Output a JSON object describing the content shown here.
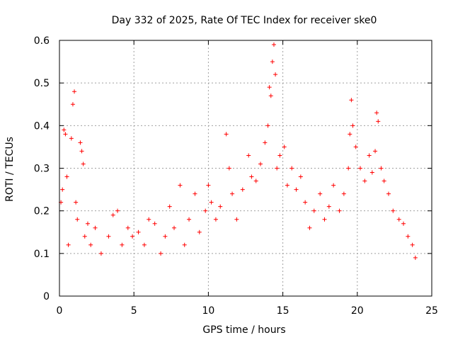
{
  "chart_data": {
    "type": "scatter",
    "title": "Day 332 of 2025, Rate Of TEC Index for receiver ske0",
    "xlabel": "GPS time / hours",
    "ylabel": "ROTI / TECUs",
    "xlim": [
      0,
      25
    ],
    "ylim": [
      0,
      0.6
    ],
    "x_ticks": [
      "0",
      "5",
      "10",
      "15",
      "20",
      "25"
    ],
    "y_ticks": [
      "0",
      "0.1",
      "0.2",
      "0.3",
      "0.4",
      "0.5",
      "0.6"
    ],
    "grid": true,
    "marker": "plus",
    "color": "#ff0000",
    "series": [
      {
        "x": [
          0.1,
          0.2,
          0.3,
          0.4,
          0.5,
          0.6,
          0.8,
          0.9,
          1.0,
          1.1,
          1.2,
          1.4,
          1.5,
          1.6,
          1.7,
          1.9,
          2.1,
          2.4,
          2.8,
          3.3,
          3.6,
          3.9,
          4.2,
          4.6,
          4.9,
          5.3,
          5.7,
          6.0,
          6.4,
          6.8,
          7.1,
          7.4,
          7.7,
          8.1,
          8.4,
          8.7,
          9.1,
          9.4,
          9.8,
          10.0,
          10.2,
          10.5,
          10.8,
          11.2,
          11.4,
          11.6,
          11.9,
          12.3,
          12.7,
          12.9,
          13.2,
          13.5,
          13.8,
          14.0,
          14.1,
          14.2,
          14.3,
          14.4,
          14.5,
          14.6,
          14.8,
          15.1,
          15.3,
          15.6,
          15.9,
          16.2,
          16.5,
          16.8,
          17.1,
          17.5,
          17.8,
          18.1,
          18.4,
          18.8,
          19.1,
          19.4,
          19.5,
          19.6,
          19.7,
          19.9,
          20.2,
          20.5,
          20.8,
          21.0,
          21.2,
          21.3,
          21.4,
          21.6,
          21.8,
          22.1,
          22.4,
          22.8,
          23.1,
          23.4,
          23.7,
          23.9
        ],
        "y": [
          0.22,
          0.25,
          0.39,
          0.38,
          0.28,
          0.12,
          0.37,
          0.45,
          0.48,
          0.22,
          0.18,
          0.36,
          0.34,
          0.31,
          0.14,
          0.17,
          0.12,
          0.16,
          0.1,
          0.14,
          0.19,
          0.2,
          0.12,
          0.16,
          0.14,
          0.15,
          0.12,
          0.18,
          0.17,
          0.1,
          0.14,
          0.21,
          0.16,
          0.26,
          0.12,
          0.18,
          0.24,
          0.15,
          0.2,
          0.26,
          0.22,
          0.18,
          0.21,
          0.38,
          0.3,
          0.24,
          0.18,
          0.25,
          0.33,
          0.28,
          0.27,
          0.31,
          0.36,
          0.4,
          0.49,
          0.47,
          0.55,
          0.59,
          0.52,
          0.3,
          0.33,
          0.35,
          0.26,
          0.3,
          0.25,
          0.28,
          0.22,
          0.16,
          0.2,
          0.24,
          0.18,
          0.21,
          0.26,
          0.2,
          0.24,
          0.3,
          0.38,
          0.46,
          0.4,
          0.35,
          0.3,
          0.27,
          0.33,
          0.29,
          0.34,
          0.43,
          0.41,
          0.3,
          0.27,
          0.24,
          0.2,
          0.18,
          0.17,
          0.14,
          0.12,
          0.09
        ]
      }
    ]
  }
}
